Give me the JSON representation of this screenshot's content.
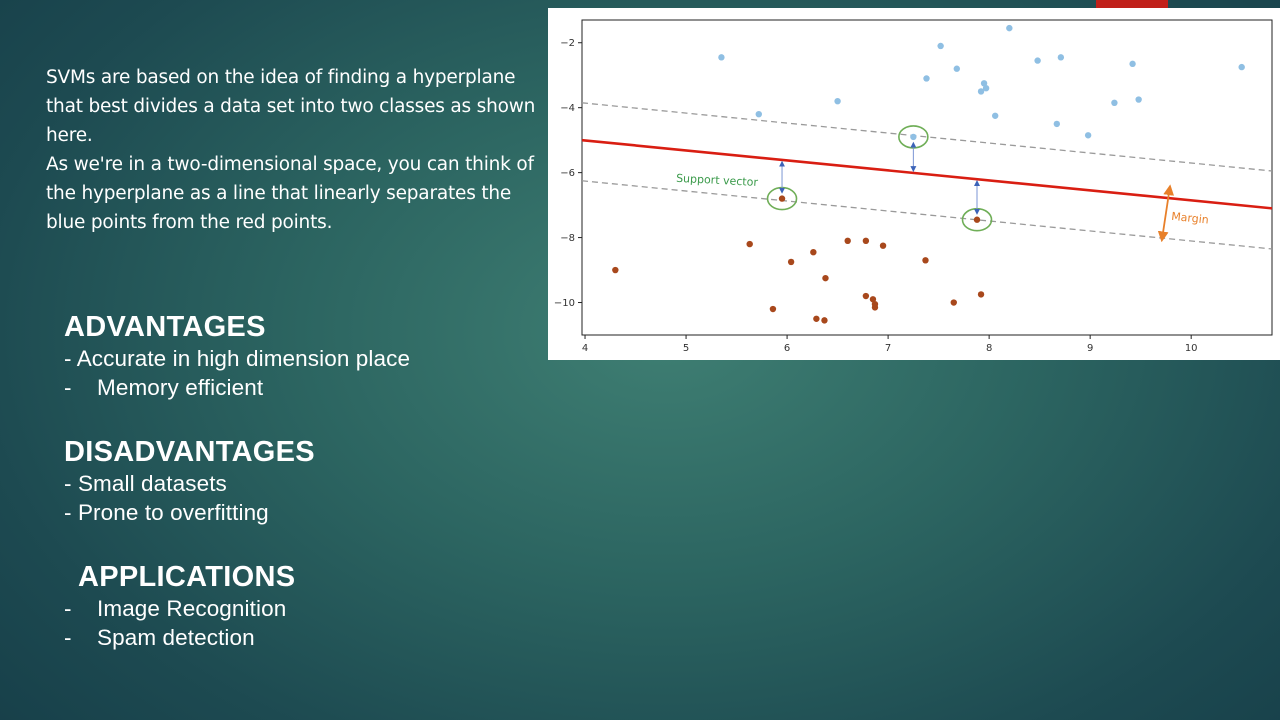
{
  "intro": {
    "text": "SVMs are based on the idea of finding a hyperplane  that best divides a data set into two classes as shown here.\nAs we're in a two-dimensional space, you can think of the hyperplane as a line that linearly separates the blue points from the red points."
  },
  "advantages": {
    "heading": "ADVANTAGES",
    "items": [
      "- Accurate in high dimension place",
      "-    Memory efficient"
    ]
  },
  "disadvantages": {
    "heading": "DISADVANTAGES",
    "items": [
      "- Small datasets",
      "- Prone to overfitting"
    ]
  },
  "applications": {
    "heading": "APPLICATIONS",
    "items": [
      "-    Image Recognition",
      "-    Spam detection"
    ]
  },
  "colors": {
    "accent_tab": "#c0201a",
    "blue_points": "#8fbfe3",
    "red_points": "#a8481c",
    "hyperplane": "#d91e12",
    "margin_lines": "#9a9a9a",
    "support_circle": "#6fae57",
    "margin_arrow": "#e8802a"
  },
  "chart_data": {
    "type": "scatter",
    "x_ticks": [
      4,
      5,
      6,
      7,
      8,
      9,
      10
    ],
    "y_ticks": [
      -2,
      -4,
      -6,
      -8,
      -10
    ],
    "xlim": [
      3.97,
      10.8
    ],
    "ylim": [
      -11.0,
      -1.3
    ],
    "grid": false,
    "annotations": {
      "support_vector": "Support vector",
      "margin": "Margin"
    },
    "series": [
      {
        "values": [
          [
            5.35,
            -2.45
          ],
          [
            5.72,
            -4.2
          ],
          [
            6.5,
            -3.8
          ],
          [
            7.38,
            -3.1
          ],
          [
            7.52,
            -2.1
          ],
          [
            7.68,
            -2.8
          ],
          [
            7.92,
            -3.5
          ],
          [
            7.95,
            -3.25
          ],
          [
            7.97,
            -3.4
          ],
          [
            8.06,
            -4.25
          ],
          [
            8.2,
            -1.55
          ],
          [
            8.48,
            -2.55
          ],
          [
            8.67,
            -4.5
          ],
          [
            8.71,
            -2.45
          ],
          [
            8.98,
            -4.85
          ],
          [
            9.24,
            -3.85
          ],
          [
            9.42,
            -2.65
          ],
          [
            9.48,
            -3.75
          ],
          [
            10.5,
            -2.75
          ],
          [
            7.25,
            -4.9
          ]
        ]
      },
      {
        "values": [
          [
            4.3,
            -9.0
          ],
          [
            5.63,
            -8.2
          ],
          [
            5.86,
            -10.2
          ],
          [
            6.04,
            -8.75
          ],
          [
            6.26,
            -8.45
          ],
          [
            6.29,
            -10.5
          ],
          [
            6.37,
            -10.55
          ],
          [
            6.38,
            -9.25
          ],
          [
            6.6,
            -8.1
          ],
          [
            6.78,
            -9.8
          ],
          [
            6.78,
            -8.1
          ],
          [
            6.85,
            -9.9
          ],
          [
            6.87,
            -10.05
          ],
          [
            6.87,
            -10.15
          ],
          [
            6.95,
            -8.25
          ],
          [
            7.37,
            -8.7
          ],
          [
            7.65,
            -10.0
          ],
          [
            7.92,
            -9.75
          ],
          [
            5.95,
            -6.8
          ],
          [
            7.88,
            -7.45
          ]
        ]
      }
    ],
    "hyperplane": {
      "x1": 3.97,
      "y1": -5.0,
      "x2": 10.8,
      "y2": -7.1
    },
    "margin_upper": {
      "x1": 3.97,
      "y1": -3.85,
      "x2": 10.8,
      "y2": -5.95
    },
    "margin_lower": {
      "x1": 3.97,
      "y1": -6.25,
      "x2": 10.8,
      "y2": -8.35
    },
    "support_vectors": [
      [
        7.25,
        -4.9
      ],
      [
        5.95,
        -6.8
      ],
      [
        7.88,
        -7.45
      ]
    ]
  }
}
